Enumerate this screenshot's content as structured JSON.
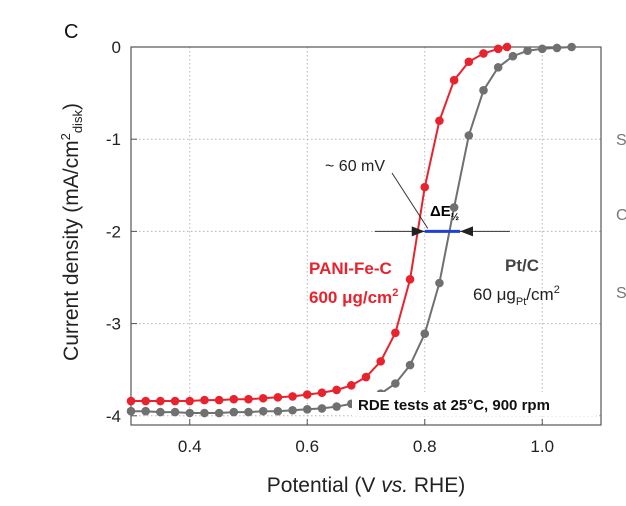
{
  "panel_label": "c",
  "chart_data": {
    "type": "line",
    "xlabel_pre": "Potential (V ",
    "xlabel_italic": "vs.",
    "xlabel_post": " RHE)",
    "ylabel": "Current density (mA/cm",
    "ylabel_sup": "2",
    "ylabel_sub": "disk",
    "ylabel_end": ")",
    "xlim": [
      0.3,
      1.1
    ],
    "ylim": [
      -4.1,
      0.0
    ],
    "xticks": [
      0.4,
      0.6,
      0.8,
      1.0
    ],
    "xtick_labels": [
      "0.4",
      "0.6",
      "0.8",
      "1.0"
    ],
    "yticks": [
      0,
      -1,
      -2,
      -3,
      -4
    ],
    "ytick_labels": [
      "0",
      "-1",
      "-2",
      "-3",
      "-4"
    ],
    "grid": true,
    "series": [
      {
        "name": "PANI-Fe-C",
        "label_line1": "PANI-Fe-C",
        "label_line2_pre": "600 ",
        "label_line2_mu": "μg/cm",
        "label_line2_sup": "2",
        "color": "#e8232e",
        "x": [
          0.3,
          0.325,
          0.35,
          0.375,
          0.4,
          0.425,
          0.45,
          0.475,
          0.5,
          0.525,
          0.55,
          0.575,
          0.6,
          0.625,
          0.65,
          0.675,
          0.7,
          0.725,
          0.75,
          0.775,
          0.8,
          0.825,
          0.85,
          0.875,
          0.9,
          0.925,
          0.94
        ],
        "y": [
          -3.84,
          -3.84,
          -3.84,
          -3.84,
          -3.84,
          -3.83,
          -3.83,
          -3.82,
          -3.82,
          -3.81,
          -3.8,
          -3.79,
          -3.77,
          -3.75,
          -3.72,
          -3.67,
          -3.58,
          -3.41,
          -3.1,
          -2.52,
          -1.52,
          -0.8,
          -0.36,
          -0.16,
          -0.07,
          -0.02,
          0.0
        ]
      },
      {
        "name": "Pt/C",
        "label_line1": "Pt/C",
        "label_line2_pre": "60 ",
        "label_line2_mu": "μg",
        "label_line2_sub": "Pt",
        "label_line2_post": "/cm",
        "label_line2_sup": "2",
        "color": "#707070",
        "x": [
          0.3,
          0.325,
          0.35,
          0.375,
          0.4,
          0.425,
          0.45,
          0.475,
          0.5,
          0.525,
          0.55,
          0.575,
          0.6,
          0.625,
          0.65,
          0.675,
          0.7,
          0.725,
          0.75,
          0.775,
          0.8,
          0.825,
          0.85,
          0.875,
          0.9,
          0.925,
          0.95,
          0.975,
          1.0,
          1.025,
          1.05
        ],
        "y": [
          -3.95,
          -3.95,
          -3.96,
          -3.96,
          -3.97,
          -3.97,
          -3.97,
          -3.96,
          -3.96,
          -3.95,
          -3.95,
          -3.94,
          -3.93,
          -3.92,
          -3.9,
          -3.87,
          -3.83,
          -3.76,
          -3.65,
          -3.45,
          -3.11,
          -2.56,
          -1.74,
          -0.96,
          -0.47,
          -0.22,
          -0.1,
          -0.04,
          -0.02,
          -0.01,
          0.0
        ]
      }
    ],
    "annotations": {
      "delta_text": "~ 60 mV",
      "delta_symbol": "ΔE",
      "delta_sub": "½",
      "half_wave_y": -2.0,
      "half_wave_x1": 0.8,
      "half_wave_x2": 0.86,
      "delta_color": "#1f3fd6",
      "note": "RDE tests at 25°C, 900 rpm"
    }
  },
  "cutoff_text": [
    "S",
    "C",
    "S"
  ]
}
